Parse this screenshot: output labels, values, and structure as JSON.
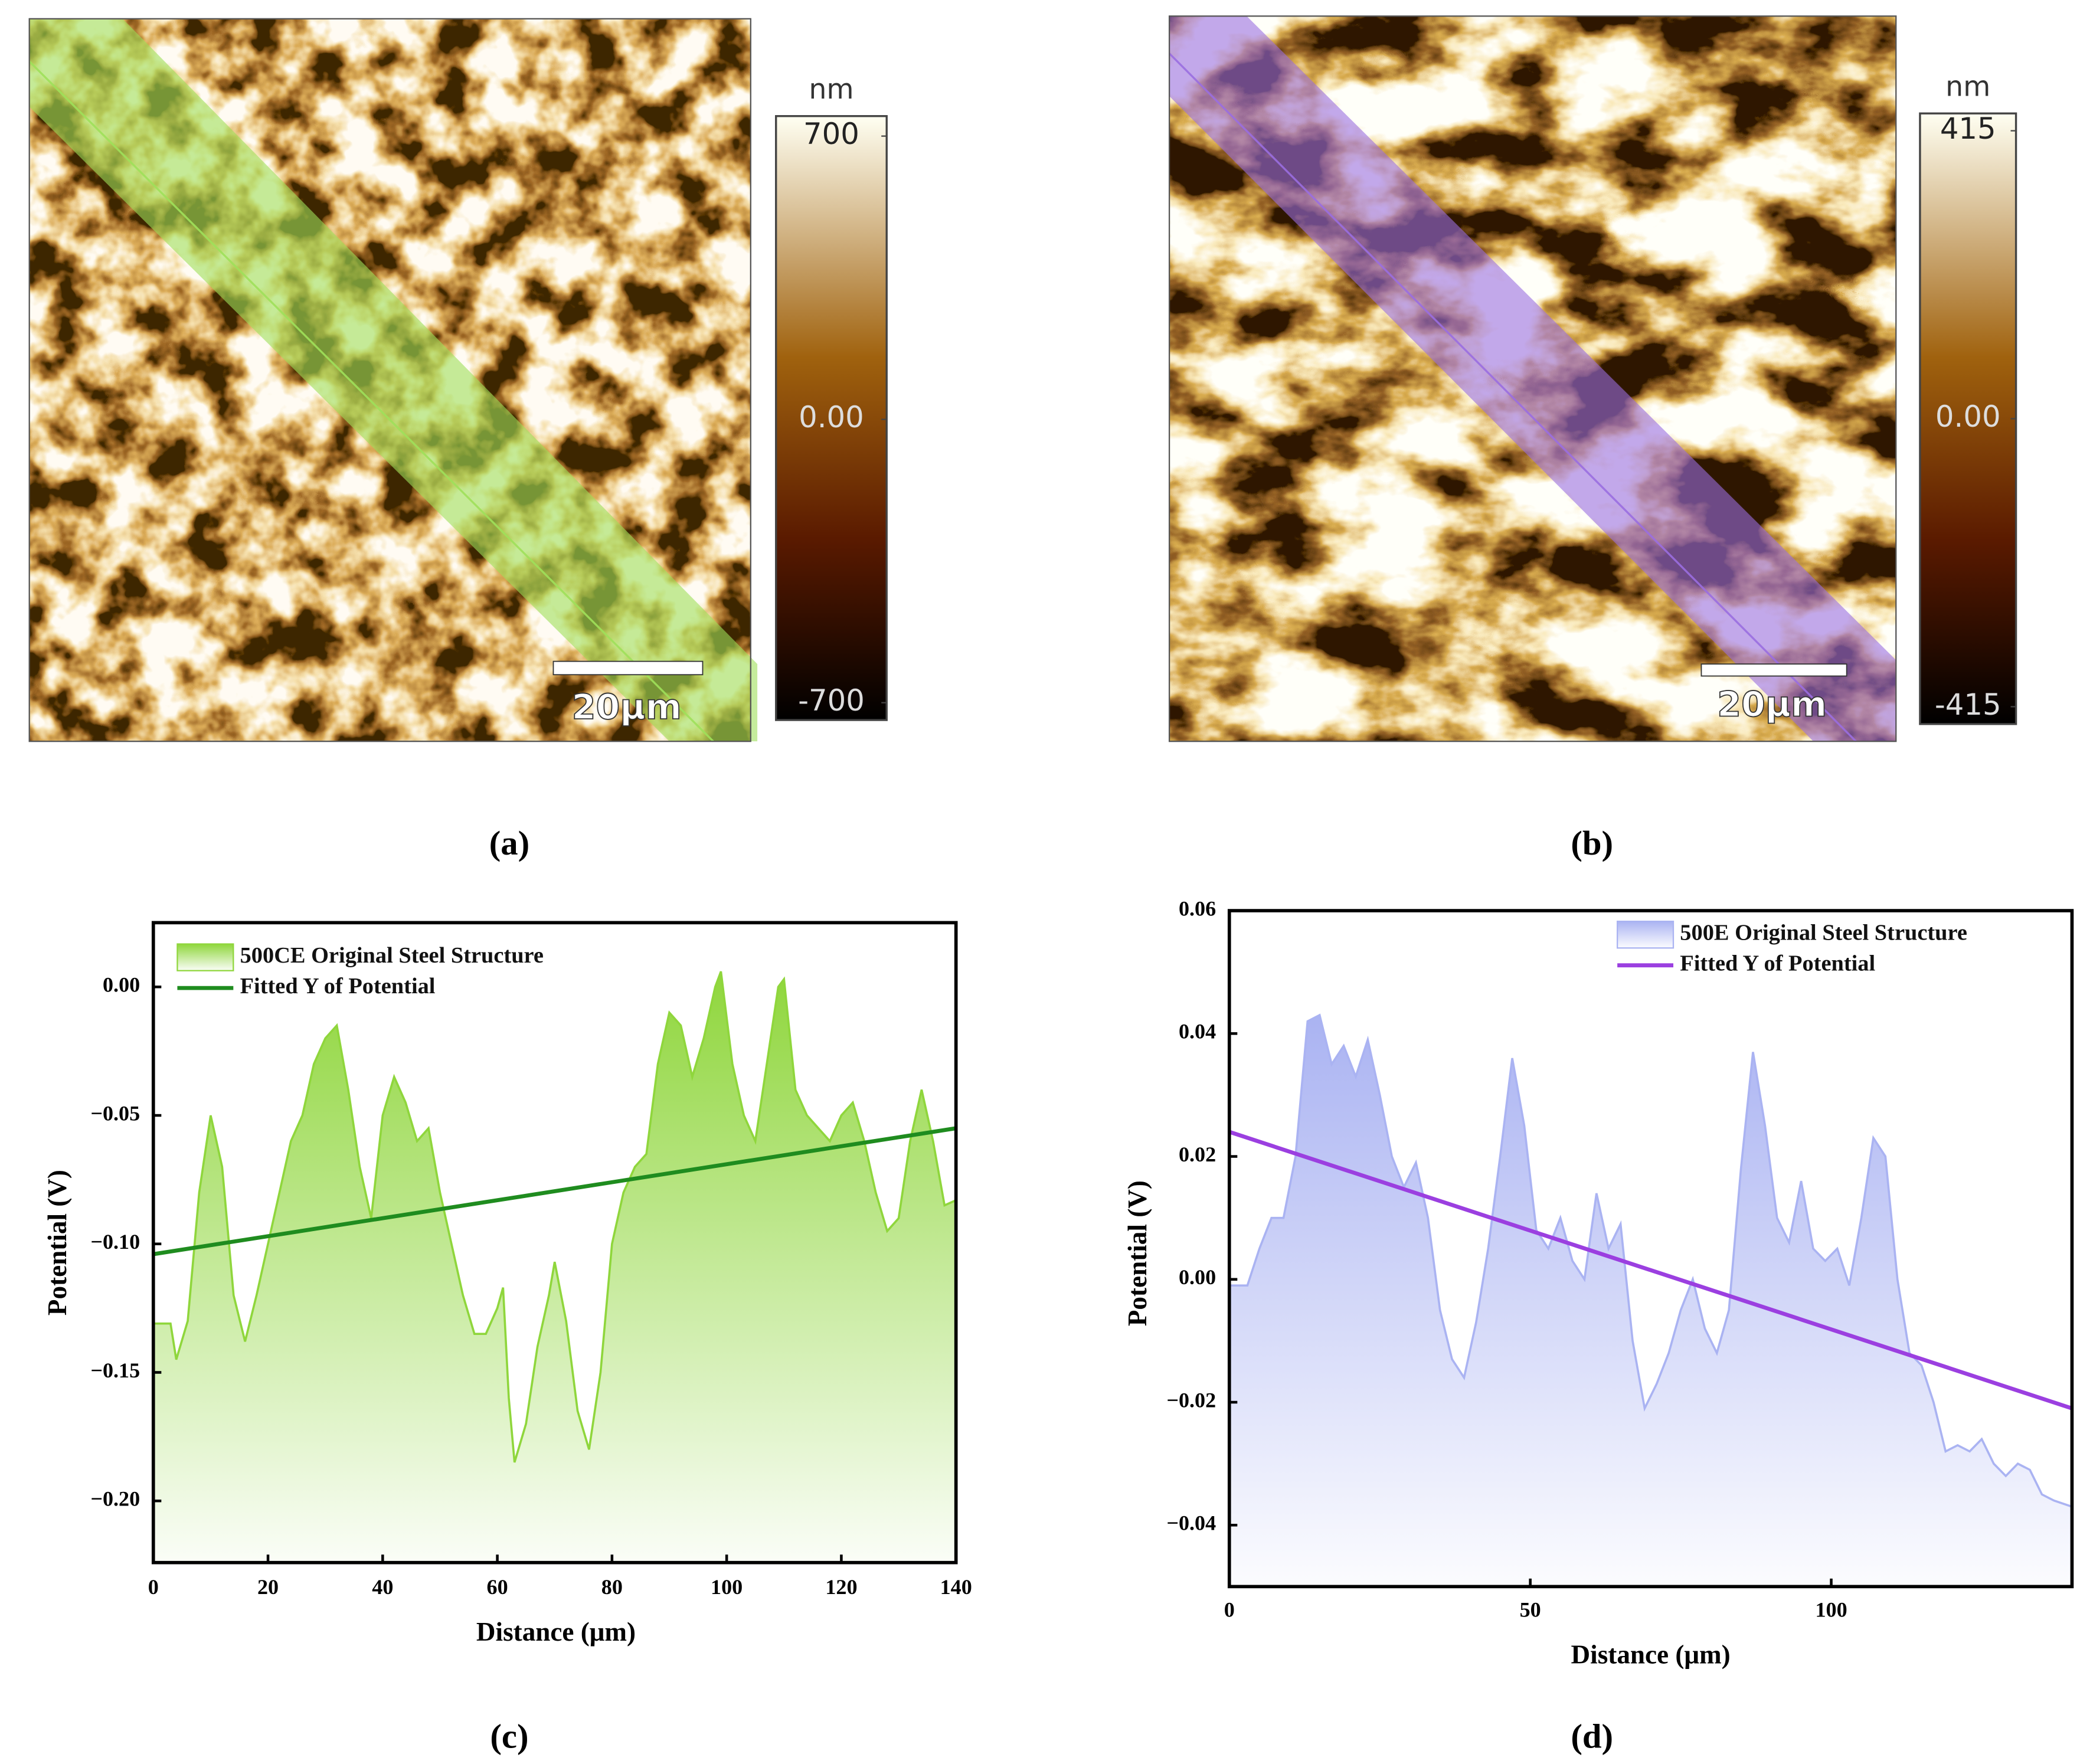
{
  "images": [
    {
      "label": "(a)",
      "unit": "nm",
      "lim": [
        -700,
        700
      ],
      "ticks": [
        700,
        {
          "value": 0,
          "label": "0.00"
        },
        -700
      ],
      "scale_bar": "20μm",
      "band_color": "#9fe05a"
    },
    {
      "label": "(b)",
      "unit": "nm",
      "lim": [
        -415,
        415
      ],
      "ticks": [
        415,
        {
          "value": 0,
          "label": "0.00"
        },
        -415
      ],
      "scale_bar": "20μm",
      "band_color": "#9a6ee0"
    }
  ],
  "chart_data": [
    {
      "type": "area",
      "label": "(c)",
      "xlabel": "Distance (μm)",
      "ylabel": "Potential (V)",
      "xlim": [
        0,
        140
      ],
      "xticks": [
        0,
        20,
        40,
        60,
        80,
        100,
        120,
        140
      ],
      "ylim": [
        -0.224,
        0.025
      ],
      "yticks": [
        {
          "value": -0.2,
          "label": "−0.20"
        },
        {
          "value": -0.15,
          "label": "−0.15"
        },
        {
          "value": -0.1,
          "label": "−0.10"
        },
        {
          "value": -0.05,
          "label": "−0.05"
        },
        {
          "value": 0,
          "label": "0.00"
        }
      ],
      "series": [
        {
          "name": "500CE Original Steel Structure",
          "kind": "area",
          "color": "#8fd63c",
          "x": [
            0,
            3,
            4,
            6,
            8,
            10,
            12,
            14,
            16,
            18,
            20,
            22,
            24,
            26,
            28,
            30,
            32,
            34,
            36,
            38,
            40,
            42,
            44,
            46,
            48,
            50,
            52,
            54,
            56,
            58,
            60,
            61,
            62,
            63,
            65,
            67,
            69,
            70,
            72,
            74,
            76,
            78,
            80,
            82,
            84,
            86,
            88,
            90,
            92,
            94,
            96,
            98,
            99,
            101,
            103,
            105,
            107,
            109,
            110,
            112,
            114,
            116,
            118,
            120,
            122,
            124,
            126,
            128,
            130,
            132,
            134,
            136,
            138,
            140
          ],
          "values": [
            -0.131,
            -0.131,
            -0.145,
            -0.13,
            -0.08,
            -0.05,
            -0.07,
            -0.12,
            -0.138,
            -0.12,
            -0.1,
            -0.08,
            -0.06,
            -0.05,
            -0.03,
            -0.02,
            -0.015,
            -0.04,
            -0.07,
            -0.09,
            -0.05,
            -0.035,
            -0.045,
            -0.06,
            -0.055,
            -0.08,
            -0.1,
            -0.12,
            -0.135,
            -0.135,
            -0.125,
            -0.117,
            -0.16,
            -0.185,
            -0.17,
            -0.14,
            -0.12,
            -0.107,
            -0.13,
            -0.165,
            -0.18,
            -0.15,
            -0.1,
            -0.08,
            -0.07,
            -0.065,
            -0.03,
            -0.01,
            -0.015,
            -0.035,
            -0.02,
            0,
            0.006,
            -0.03,
            -0.05,
            -0.06,
            -0.03,
            0,
            0.003,
            -0.04,
            -0.05,
            -0.055,
            -0.06,
            -0.05,
            -0.045,
            -0.06,
            -0.08,
            -0.095,
            -0.09,
            -0.06,
            -0.04,
            -0.06,
            -0.085,
            -0.083
          ]
        },
        {
          "name": "Fitted Y of Potential",
          "kind": "line",
          "color": "#1f8c1f",
          "x": [
            0,
            140
          ],
          "values": [
            -0.104,
            -0.055
          ]
        }
      ]
    },
    {
      "type": "area",
      "label": "(d)",
      "xlabel": "Distance (μm)",
      "ylabel": "Potential (V)",
      "xlim": [
        0,
        140
      ],
      "xticks": [
        0,
        50,
        100
      ],
      "ylim": [
        -0.05,
        0.06
      ],
      "yticks": [
        {
          "value": -0.04,
          "label": "−0.04"
        },
        {
          "value": -0.02,
          "label": "−0.02"
        },
        {
          "value": 0,
          "label": "0.00"
        },
        0.02,
        0.04,
        0.06
      ],
      "series": [
        {
          "name": "500E Original Steel Structure",
          "kind": "area",
          "color": "#aab3f2",
          "x": [
            0,
            3,
            5,
            7,
            9,
            11,
            13,
            15,
            17,
            19,
            21,
            23,
            25,
            27,
            29,
            31,
            33,
            35,
            37,
            39,
            41,
            43,
            45,
            47,
            49,
            51,
            53,
            55,
            57,
            59,
            61,
            63,
            65,
            67,
            69,
            71,
            73,
            75,
            77,
            79,
            81,
            83,
            85,
            87,
            89,
            91,
            93,
            95,
            97,
            99,
            101,
            103,
            105,
            107,
            109,
            111,
            113,
            115,
            117,
            119,
            121,
            123,
            125,
            127,
            129,
            131,
            133,
            135,
            137,
            140
          ],
          "values": [
            -0.001,
            -0.001,
            0.005,
            0.01,
            0.01,
            0.02,
            0.042,
            0.043,
            0.035,
            0.038,
            0.033,
            0.039,
            0.03,
            0.02,
            0.015,
            0.019,
            0.01,
            -0.005,
            -0.013,
            -0.016,
            -0.007,
            0.005,
            0.02,
            0.036,
            0.025,
            0.008,
            0.005,
            0.01,
            0.003,
            0,
            0.014,
            0.005,
            0.009,
            -0.01,
            -0.021,
            -0.017,
            -0.012,
            -0.005,
            0,
            -0.008,
            -0.012,
            -0.005,
            0.018,
            0.037,
            0.025,
            0.01,
            0.006,
            0.016,
            0.005,
            0.003,
            0.005,
            -0.001,
            0.01,
            0.023,
            0.02,
            0,
            -0.012,
            -0.014,
            -0.02,
            -0.028,
            -0.027,
            -0.028,
            -0.026,
            -0.03,
            -0.032,
            -0.03,
            -0.031,
            -0.035,
            -0.036,
            -0.037
          ]
        },
        {
          "name": "Fitted Y of Potential",
          "kind": "line",
          "color": "#9b3fe0",
          "x": [
            0,
            140
          ],
          "values": [
            0.024,
            -0.021
          ]
        }
      ]
    }
  ]
}
